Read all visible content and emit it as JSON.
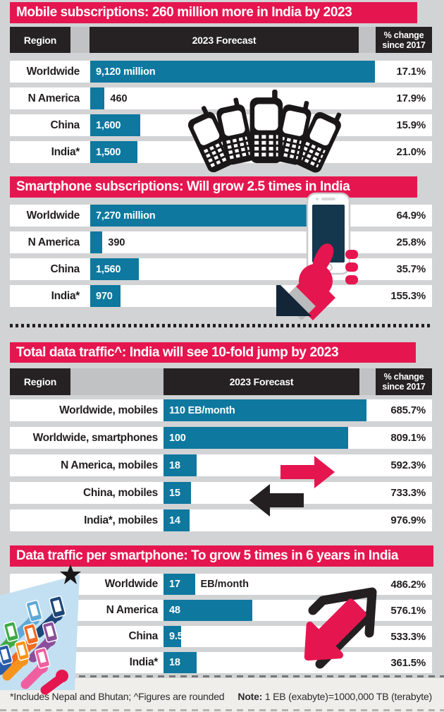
{
  "page": {
    "background_color": "#d2d3d5",
    "accent_red": "#e5164f",
    "bar_teal": "#0e789f",
    "header_black": "#262223",
    "row_white": "#ffffff",
    "footer_bg": "#f0eeea"
  },
  "table_header": {
    "region": "Region",
    "forecast": "2023 Forecast",
    "change_line1": "% change",
    "change_line2": "since 2017"
  },
  "icons": {
    "section1": "feature-phones-icon",
    "section2": "hand-holding-smartphone-icon",
    "section3": "left-right-arrows-icon",
    "section4": "up-down-arrows-icon",
    "section4_left": "hands-holding-phones-illustration",
    "star": "star-icon"
  },
  "footer": {
    "left": "*Includes Nepal and Bhutan; ^Figures are rounded",
    "note_label": "Note:",
    "note_text": " 1 EB (exabyte)=1000,000 TB (terabyte)"
  },
  "chart_data": [
    {
      "type": "bar",
      "title": "Mobile subscriptions: 260 million more in India by 2023",
      "unit": "million",
      "categories": [
        "Worldwide",
        "N America",
        "China",
        "India*"
      ],
      "values": [
        9120,
        460,
        1600,
        1500
      ],
      "bar_labels": [
        "9,120 million",
        "460",
        "1,600",
        "1,500"
      ],
      "pct_change": [
        "17.1%",
        "17.9%",
        "15.9%",
        "21.0%"
      ],
      "xlim": [
        0,
        9120
      ],
      "legend": "none",
      "grid": "off"
    },
    {
      "type": "bar",
      "title": "Smartphone subscriptions: Will grow 2.5 times in India",
      "unit": "million",
      "categories": [
        "Worldwide",
        "N America",
        "China",
        "India*"
      ],
      "values": [
        7270,
        390,
        1560,
        970
      ],
      "bar_labels": [
        "7,270 million",
        "390",
        "1,560",
        "970"
      ],
      "pct_change": [
        "64.9%",
        "25.8%",
        "35.7%",
        "155.3%"
      ],
      "xlim": [
        0,
        9120
      ],
      "legend": "none",
      "grid": "off"
    },
    {
      "type": "bar",
      "title": "Total data traffic^: India will see 10-fold jump by 2023",
      "unit": "EB/month",
      "categories": [
        "Worldwide, mobiles",
        "Worldwide, smartphones",
        "N America, mobiles",
        "China, mobiles",
        "India*, mobiles"
      ],
      "values": [
        110,
        100,
        18,
        15,
        14
      ],
      "bar_labels": [
        "110 EB/month",
        "100",
        "18",
        "15",
        "14"
      ],
      "pct_change": [
        "685.7%",
        "809.1%",
        "592.3%",
        "733.3%",
        "976.9%"
      ],
      "xlim": [
        0,
        145
      ],
      "legend": "none",
      "grid": "off"
    },
    {
      "type": "bar",
      "title": "Data traffic per smartphone: To grow 5 times in 6 years in India",
      "unit": "EB/month",
      "categories": [
        "Worldwide",
        "N America",
        "China",
        "India*"
      ],
      "values": [
        17,
        48,
        9.5,
        18
      ],
      "bar_labels": [
        "17",
        "48",
        "9.5",
        "18"
      ],
      "after_bar_labels": [
        "EB/month",
        "",
        "",
        ""
      ],
      "pct_change": [
        "486.2%",
        "576.1%",
        "533.3%",
        "361.5%"
      ],
      "xlim": [
        0,
        145
      ],
      "legend": "none",
      "grid": "off"
    }
  ]
}
